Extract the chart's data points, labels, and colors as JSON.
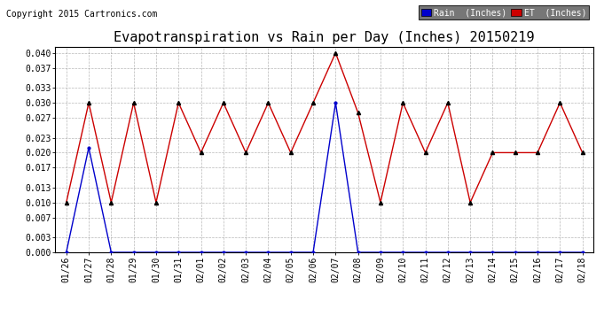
{
  "title": "Evapotranspiration vs Rain per Day (Inches) 20150219",
  "copyright": "Copyright 2015 Cartronics.com",
  "x_labels": [
    "01/26",
    "01/27",
    "01/28",
    "01/29",
    "01/30",
    "01/31",
    "02/01",
    "02/02",
    "02/03",
    "02/04",
    "02/05",
    "02/06",
    "02/07",
    "02/08",
    "02/09",
    "02/10",
    "02/11",
    "02/12",
    "02/13",
    "02/14",
    "02/15",
    "02/16",
    "02/17",
    "02/18"
  ],
  "rain_inches": [
    0.0,
    0.021,
    0.0,
    0.0,
    0.0,
    0.0,
    0.0,
    0.0,
    0.0,
    0.0,
    0.0,
    0.0,
    0.03,
    0.0,
    0.0,
    0.0,
    0.0,
    0.0,
    0.0,
    0.0,
    0.0,
    0.0,
    0.0,
    0.0
  ],
  "et_inches": [
    0.01,
    0.03,
    0.01,
    0.03,
    0.01,
    0.03,
    0.02,
    0.03,
    0.02,
    0.03,
    0.02,
    0.03,
    0.04,
    0.028,
    0.01,
    0.03,
    0.02,
    0.03,
    0.01,
    0.02,
    0.02,
    0.02,
    0.03,
    0.02
  ],
  "rain_color": "#0000cc",
  "et_color": "#cc0000",
  "bg_color": "#ffffff",
  "grid_color": "#888888",
  "ylim_min": 0.0,
  "ylim_max": 0.0413,
  "yticks": [
    0.0,
    0.003,
    0.007,
    0.01,
    0.013,
    0.017,
    0.02,
    0.023,
    0.027,
    0.03,
    0.033,
    0.037,
    0.04
  ],
  "legend_rain_label": "Rain  (Inches)",
  "legend_rain_bg": "#0000cc",
  "legend_et_bg": "#cc0000",
  "title_fontsize": 11,
  "tick_fontsize": 7,
  "copyright_fontsize": 7
}
